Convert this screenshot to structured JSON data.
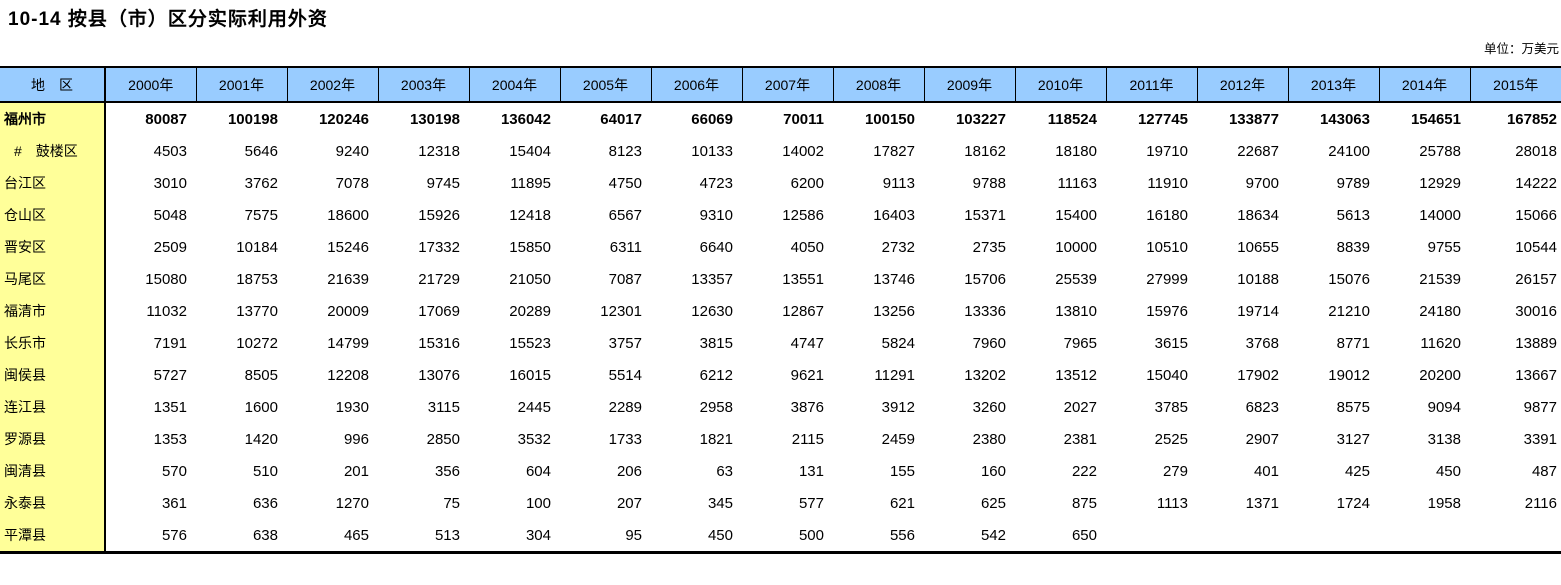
{
  "title": "10-14 按县（市）区分实际利用外资",
  "unit_label": "单位：万美元",
  "colors": {
    "header_bg": "#99CCFF",
    "label_col_bg": "#FFFF99",
    "border": "#000000",
    "page_bg": "#FFFFFF"
  },
  "table": {
    "region_header": "地　区",
    "year_headers": [
      "2000年",
      "2001年",
      "2002年",
      "2003年",
      "2004年",
      "2005年",
      "2006年",
      "2007年",
      "2008年",
      "2009年",
      "2010年",
      "2011年",
      "2012年",
      "2013年",
      "2014年",
      "2015年"
    ],
    "rows": [
      {
        "label": "福州市",
        "bold": true,
        "indent": false,
        "values": [
          "80087",
          "100198",
          "120246",
          "130198",
          "136042",
          "64017",
          "66069",
          "70011",
          "100150",
          "103227",
          "118524",
          "127745",
          "133877",
          "143063",
          "154651",
          "167852"
        ]
      },
      {
        "label": "#　鼓楼区",
        "bold": false,
        "indent": true,
        "values": [
          "4503",
          "5646",
          "9240",
          "12318",
          "15404",
          "8123",
          "10133",
          "14002",
          "17827",
          "18162",
          "18180",
          "19710",
          "22687",
          "24100",
          "25788",
          "28018"
        ]
      },
      {
        "label": "台江区",
        "bold": false,
        "indent": false,
        "values": [
          "3010",
          "3762",
          "7078",
          "9745",
          "11895",
          "4750",
          "4723",
          "6200",
          "9113",
          "9788",
          "11163",
          "11910",
          "9700",
          "9789",
          "12929",
          "14222"
        ]
      },
      {
        "label": "仓山区",
        "bold": false,
        "indent": false,
        "values": [
          "5048",
          "7575",
          "18600",
          "15926",
          "12418",
          "6567",
          "9310",
          "12586",
          "16403",
          "15371",
          "15400",
          "16180",
          "18634",
          "5613",
          "14000",
          "15066"
        ]
      },
      {
        "label": "晋安区",
        "bold": false,
        "indent": false,
        "values": [
          "2509",
          "10184",
          "15246",
          "17332",
          "15850",
          "6311",
          "6640",
          "4050",
          "2732",
          "2735",
          "10000",
          "10510",
          "10655",
          "8839",
          "9755",
          "10544"
        ]
      },
      {
        "label": "马尾区",
        "bold": false,
        "indent": false,
        "values": [
          "15080",
          "18753",
          "21639",
          "21729",
          "21050",
          "7087",
          "13357",
          "13551",
          "13746",
          "15706",
          "25539",
          "27999",
          "10188",
          "15076",
          "21539",
          "26157"
        ]
      },
      {
        "label": "福清市",
        "bold": false,
        "indent": false,
        "values": [
          "11032",
          "13770",
          "20009",
          "17069",
          "20289",
          "12301",
          "12630",
          "12867",
          "13256",
          "13336",
          "13810",
          "15976",
          "19714",
          "21210",
          "24180",
          "30016"
        ]
      },
      {
        "label": "长乐市",
        "bold": false,
        "indent": false,
        "values": [
          "7191",
          "10272",
          "14799",
          "15316",
          "15523",
          "3757",
          "3815",
          "4747",
          "5824",
          "7960",
          "7965",
          "3615",
          "3768",
          "8771",
          "11620",
          "13889"
        ]
      },
      {
        "label": "闽侯县",
        "bold": false,
        "indent": false,
        "values": [
          "5727",
          "8505",
          "12208",
          "13076",
          "16015",
          "5514",
          "6212",
          "9621",
          "11291",
          "13202",
          "13512",
          "15040",
          "17902",
          "19012",
          "20200",
          "13667"
        ]
      },
      {
        "label": "连江县",
        "bold": false,
        "indent": false,
        "values": [
          "1351",
          "1600",
          "1930",
          "3115",
          "2445",
          "2289",
          "2958",
          "3876",
          "3912",
          "3260",
          "2027",
          "3785",
          "6823",
          "8575",
          "9094",
          "9877"
        ]
      },
      {
        "label": "罗源县",
        "bold": false,
        "indent": false,
        "values": [
          "1353",
          "1420",
          "996",
          "2850",
          "3532",
          "1733",
          "1821",
          "2115",
          "2459",
          "2380",
          "2381",
          "2525",
          "2907",
          "3127",
          "3138",
          "3391"
        ]
      },
      {
        "label": "闽清县",
        "bold": false,
        "indent": false,
        "values": [
          "570",
          "510",
          "201",
          "356",
          "604",
          "206",
          "63",
          "131",
          "155",
          "160",
          "222",
          "279",
          "401",
          "425",
          "450",
          "487"
        ]
      },
      {
        "label": "永泰县",
        "bold": false,
        "indent": false,
        "values": [
          "361",
          "636",
          "1270",
          "75",
          "100",
          "207",
          "345",
          "577",
          "621",
          "625",
          "875",
          "1113",
          "1371",
          "1724",
          "1958",
          "2116"
        ]
      },
      {
        "label": "平潭县",
        "bold": false,
        "indent": false,
        "values": [
          "576",
          "638",
          "465",
          "513",
          "304",
          "95",
          "450",
          "500",
          "556",
          "542",
          "650",
          "",
          "",
          "",
          "",
          ""
        ]
      }
    ]
  }
}
